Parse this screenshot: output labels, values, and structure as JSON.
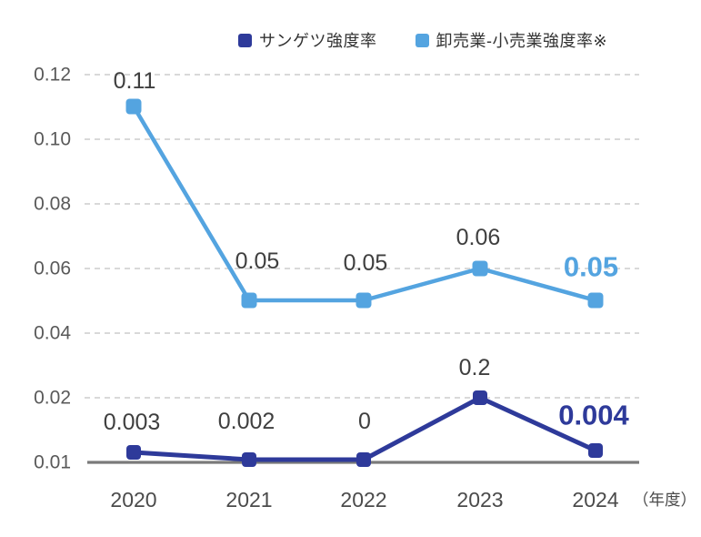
{
  "chart_data": {
    "type": "line",
    "categories": [
      "2020",
      "2021",
      "2022",
      "2023",
      "2024"
    ],
    "x_axis_note": "（年度）",
    "y_tick_labels": [
      "0.12",
      "0.10",
      "0.08",
      "0.06",
      "0.04",
      "0.02",
      "0.01"
    ],
    "grid": true,
    "legend_position": "top",
    "series": [
      {
        "name": "サンゲツ強度率",
        "color": "#2e3a9a",
        "values": [
          0.003,
          0.002,
          0,
          0.2,
          0.004
        ],
        "point_labels": [
          "0.003",
          "0.002",
          "0",
          "0.2",
          "0.004"
        ],
        "last_label_emphasized": true
      },
      {
        "name": "卸売業-小売業強度率※",
        "color": "#54a4e0",
        "values": [
          0.11,
          0.05,
          0.05,
          0.06,
          0.05
        ],
        "point_labels": [
          "0.11",
          "0.05",
          "0.05",
          "0.06",
          "0.05"
        ],
        "last_label_emphasized": true
      }
    ],
    "colors": {
      "value_label": "#3f3f3f",
      "axis_text": "#595959",
      "x_axis_text": "#4b4b4b",
      "axis_line": "#7a7a7a",
      "gridline": "#c2c2c2"
    }
  }
}
